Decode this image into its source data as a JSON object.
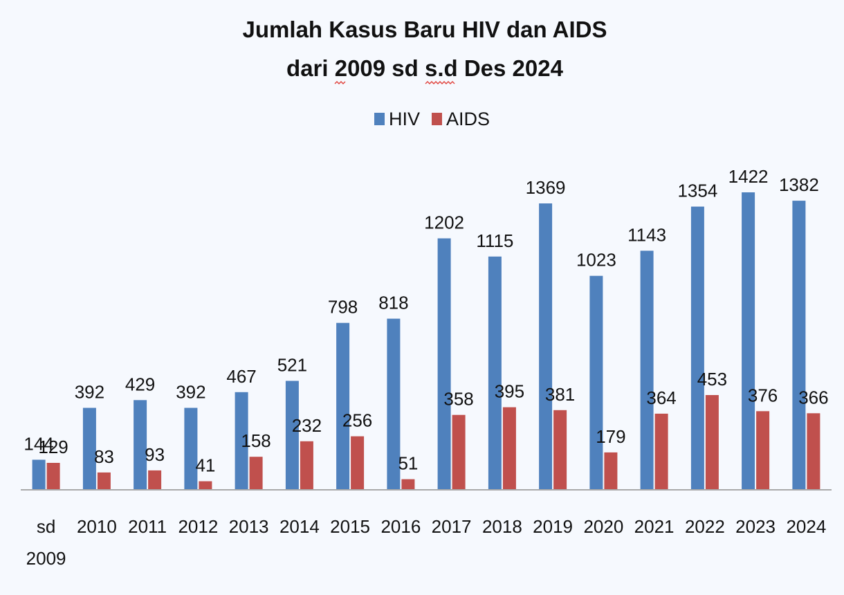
{
  "chart_data": {
    "type": "bar",
    "title_lines": [
      "Jumlah Kasus Baru HIV dan AIDS",
      "dari 2009 sd s.d Des 2024"
    ],
    "categories": [
      [
        "sd",
        "2009"
      ],
      [
        "2010"
      ],
      [
        "2011"
      ],
      [
        "2012"
      ],
      [
        "2013"
      ],
      [
        "2014"
      ],
      [
        "2015"
      ],
      [
        "2016"
      ],
      [
        "2017"
      ],
      [
        "2018"
      ],
      [
        "2019"
      ],
      [
        "2020"
      ],
      [
        "2021"
      ],
      [
        "2022"
      ],
      [
        "2023"
      ],
      [
        "2024"
      ]
    ],
    "series": [
      {
        "name": "HIV",
        "color": "#4f81bd",
        "values": [
          144,
          392,
          429,
          392,
          467,
          521,
          798,
          818,
          1202,
          1115,
          1369,
          1023,
          1143,
          1354,
          1422,
          1382
        ]
      },
      {
        "name": "AIDS",
        "color": "#c0504d",
        "values": [
          129,
          83,
          93,
          41,
          158,
          232,
          256,
          51,
          358,
          395,
          381,
          179,
          364,
          453,
          376,
          366
        ]
      }
    ],
    "ylim": [
      0,
      1422
    ],
    "legend_position": "top-center",
    "grid": false,
    "data_labels": true
  }
}
